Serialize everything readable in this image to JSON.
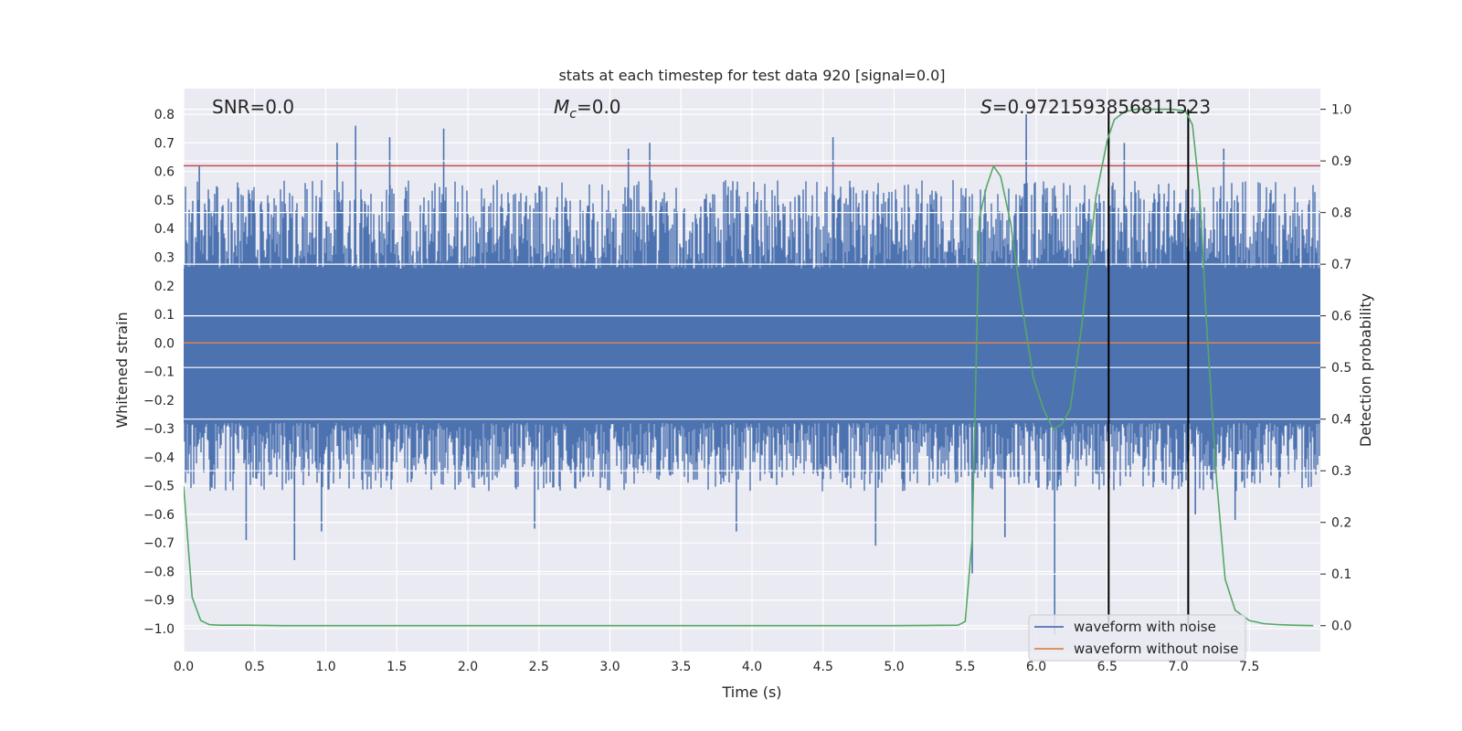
{
  "chart_data": {
    "type": "line",
    "title": "stats at each timestep for test data 920 [signal=0.0]",
    "xlabel": "Time (s)",
    "ylabel_left": "Whitened strain",
    "ylabel_right": "Detection probability",
    "xlim": [
      0.0,
      8.0
    ],
    "ylim_left": [
      -1.08,
      0.89
    ],
    "ylim_right": [
      -0.05,
      1.04
    ],
    "x_ticks": [
      "0.0",
      "0.5",
      "1.0",
      "1.5",
      "2.0",
      "2.5",
      "3.0",
      "3.5",
      "4.0",
      "4.5",
      "5.0",
      "5.5",
      "6.0",
      "6.5",
      "7.0",
      "7.5"
    ],
    "left_ticks": [
      "0.8",
      "0.7",
      "0.6",
      "0.5",
      "0.4",
      "0.3",
      "0.2",
      "0.1",
      "0.0",
      "−0.1",
      "−0.2",
      "−0.3",
      "−0.4",
      "−0.5",
      "−0.6",
      "−0.7",
      "−0.8",
      "−0.9",
      "−1.0"
    ],
    "right_ticks": [
      "1.0",
      "0.9",
      "0.8",
      "0.7",
      "0.6",
      "0.5",
      "0.4",
      "0.3",
      "0.2",
      "0.1",
      "0.0"
    ],
    "grid": true,
    "annotations": {
      "snr": "SNR=0.0",
      "mc_symbol": "M",
      "mc_sub": "c",
      "mc_value": "=0.0",
      "s_symbol": "S",
      "s_value": "=0.9721593856811523"
    },
    "threshold_line": {
      "y": 0.62,
      "color": "#c44e52"
    },
    "vertical_lines": {
      "x": [
        6.51,
        7.07
      ],
      "color": "#000000"
    },
    "series": [
      {
        "name": "waveform with noise",
        "color": "#4c72b0",
        "axis": "left",
        "envelope": {
          "upper": 0.45,
          "lower": -0.4,
          "core_upper": 0.26,
          "core_lower": -0.28
        },
        "spikes": [
          {
            "x": 0.11,
            "y": 0.62
          },
          {
            "x": 1.08,
            "y": 0.7
          },
          {
            "x": 1.21,
            "y": 0.76
          },
          {
            "x": 1.45,
            "y": 0.72
          },
          {
            "x": 1.83,
            "y": 0.75
          },
          {
            "x": 3.13,
            "y": 0.68
          },
          {
            "x": 3.28,
            "y": 0.7
          },
          {
            "x": 4.57,
            "y": 0.72
          },
          {
            "x": 5.93,
            "y": 0.8
          },
          {
            "x": 6.62,
            "y": 0.7
          },
          {
            "x": 7.32,
            "y": 0.68
          },
          {
            "x": 0.44,
            "y": -0.69
          },
          {
            "x": 0.78,
            "y": -0.76
          },
          {
            "x": 0.97,
            "y": -0.66
          },
          {
            "x": 2.47,
            "y": -0.65
          },
          {
            "x": 3.89,
            "y": -0.66
          },
          {
            "x": 4.87,
            "y": -0.71
          },
          {
            "x": 5.55,
            "y": -0.81
          },
          {
            "x": 5.78,
            "y": -0.68
          },
          {
            "x": 6.13,
            "y": -1.02
          },
          {
            "x": 7.12,
            "y": -0.6
          },
          {
            "x": 7.4,
            "y": -0.62
          }
        ]
      },
      {
        "name": "waveform without noise",
        "color": "#dd8452",
        "axis": "left",
        "x": [
          0.0,
          8.0
        ],
        "y": [
          0.0,
          0.0
        ]
      },
      {
        "name": "Detection probability",
        "color": "#55a868",
        "axis": "right",
        "x": [
          0.0,
          0.06,
          0.12,
          0.18,
          0.25,
          0.45,
          0.7,
          1.0,
          2.0,
          3.0,
          4.0,
          5.0,
          5.45,
          5.5,
          5.55,
          5.6,
          5.65,
          5.7,
          5.75,
          5.82,
          5.9,
          5.98,
          6.05,
          6.12,
          6.18,
          6.24,
          6.32,
          6.42,
          6.5,
          6.55,
          6.62,
          6.7,
          6.8,
          6.95,
          7.05,
          7.1,
          7.15,
          7.2,
          7.27,
          7.33,
          7.4,
          7.5,
          7.6,
          7.7,
          7.8,
          7.95
        ],
        "y": [
          0.27,
          0.055,
          0.01,
          0.002,
          0.001,
          0.001,
          0.0,
          0.0,
          0.0,
          0.0,
          0.0,
          0.0,
          0.001,
          0.008,
          0.17,
          0.79,
          0.85,
          0.89,
          0.87,
          0.78,
          0.62,
          0.48,
          0.42,
          0.38,
          0.39,
          0.42,
          0.58,
          0.83,
          0.94,
          0.98,
          0.995,
          1.0,
          1.0,
          1.0,
          0.997,
          0.97,
          0.84,
          0.58,
          0.28,
          0.09,
          0.03,
          0.01,
          0.004,
          0.002,
          0.001,
          0.0
        ]
      }
    ],
    "legend": {
      "placement": "lower-right",
      "entries": [
        "waveform with noise",
        "waveform without noise"
      ]
    }
  }
}
